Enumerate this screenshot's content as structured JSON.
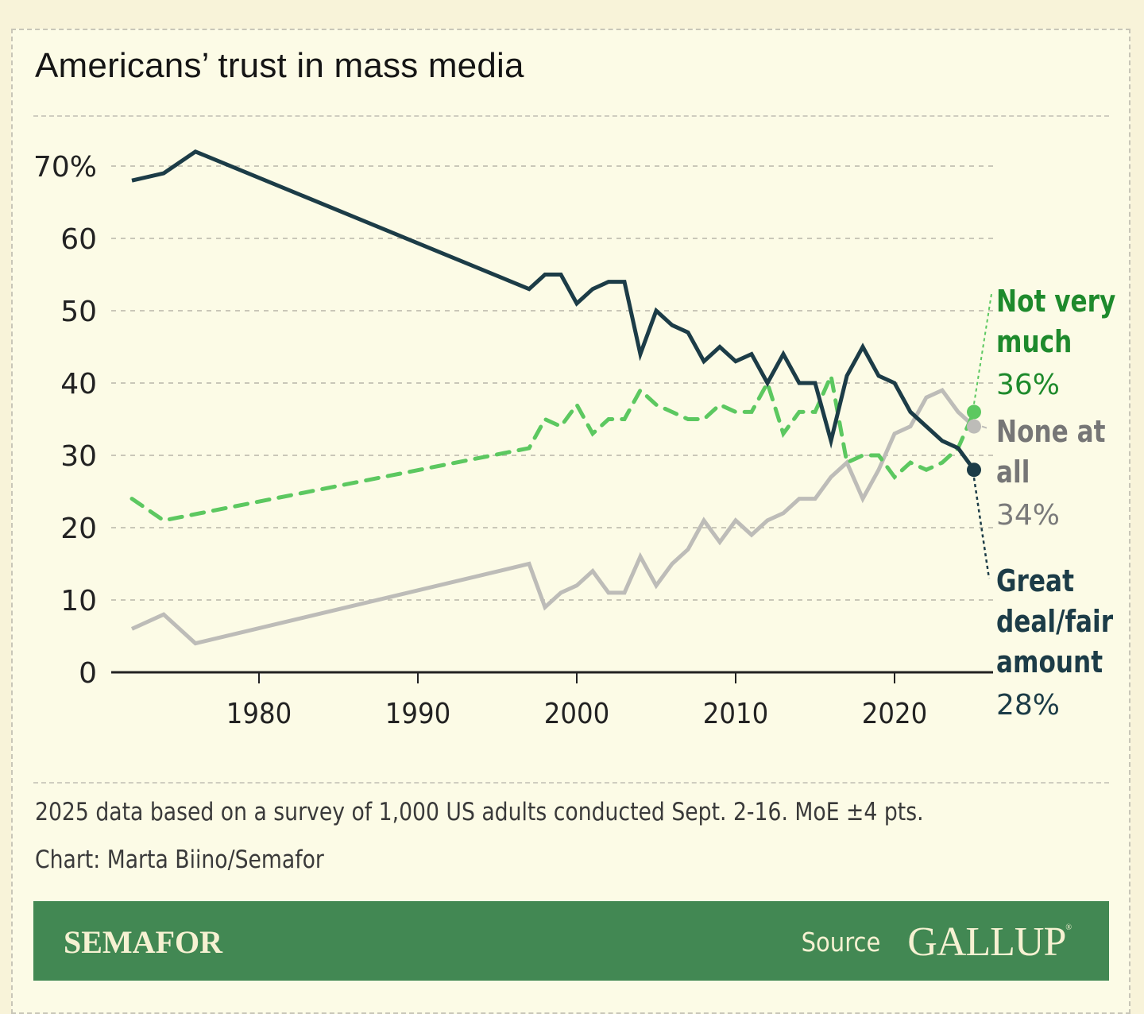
{
  "title": "Americans’ trust in mass media",
  "notes": {
    "survey": "2025 data based on a survey of 1,000 US adults conducted Sept. 2-16. MoE ±4 pts.",
    "credit": "Chart: Marta Biino/Semafor"
  },
  "footer": {
    "brand": "SEMAFOR",
    "source_label": "Source",
    "source_name": "GALLUP",
    "registered_mark": "®"
  },
  "colors": {
    "great_deal": "#1c3c47",
    "not_very_much_line": "#5cc860",
    "not_very_much_label": "#1e8a2c",
    "none_at_all_line": "#bdbcb8",
    "none_at_all_label": "#767676",
    "footer_bg": "#428853"
  },
  "chart_data": {
    "type": "line",
    "title": "Americans’ trust in mass media",
    "xlabel": "",
    "ylabel": "",
    "xlim": [
      1972,
      2025
    ],
    "ylim": [
      0,
      70
    ],
    "grid": true,
    "yticks": [
      0,
      10,
      20,
      30,
      40,
      50,
      60,
      70
    ],
    "ytick_labels": [
      "0",
      "10",
      "20",
      "30",
      "40",
      "50",
      "60",
      "70%"
    ],
    "xticks": [
      1980,
      1990,
      2000,
      2010,
      2020
    ],
    "xtick_labels": [
      "1980",
      "1990",
      "2000",
      "2010",
      "2020"
    ],
    "legend": "direct labels at right end of lines",
    "series": [
      {
        "key": "great_deal",
        "name": "Great deal/fair amount",
        "label_lines": [
          "Great",
          "deal/fair",
          "amount"
        ],
        "end_label": "28%",
        "style": "solid",
        "x": [
          1972,
          1974,
          1976,
          1997,
          1998,
          1999,
          2000,
          2001,
          2002,
          2003,
          2004,
          2005,
          2006,
          2007,
          2008,
          2009,
          2010,
          2011,
          2012,
          2013,
          2014,
          2015,
          2016,
          2017,
          2018,
          2019,
          2020,
          2021,
          2022,
          2023,
          2024,
          2025
        ],
        "values": [
          68,
          69,
          72,
          53,
          55,
          55,
          51,
          53,
          54,
          54,
          44,
          50,
          48,
          47,
          43,
          45,
          43,
          44,
          40,
          44,
          40,
          40,
          32,
          41,
          45,
          41,
          40,
          36,
          34,
          32,
          31,
          28
        ]
      },
      {
        "key": "not_very_much",
        "name": "Not very much",
        "label_lines": [
          "Not very",
          "much"
        ],
        "end_label": "36%",
        "style": "dashed",
        "x": [
          1972,
          1974,
          1997,
          1998,
          1999,
          2000,
          2001,
          2002,
          2003,
          2004,
          2005,
          2006,
          2007,
          2008,
          2009,
          2010,
          2011,
          2012,
          2013,
          2014,
          2015,
          2016,
          2017,
          2018,
          2019,
          2020,
          2021,
          2022,
          2023,
          2024,
          2025
        ],
        "values": [
          24,
          21,
          31,
          35,
          34,
          37,
          33,
          35,
          35,
          39,
          37,
          36,
          35,
          35,
          37,
          36,
          36,
          40,
          33,
          36,
          36,
          41,
          29,
          30,
          30,
          27,
          29,
          28,
          29,
          31,
          36
        ]
      },
      {
        "key": "none_at_all",
        "name": "None at all",
        "label_lines": [
          "None at",
          "all"
        ],
        "end_label": "34%",
        "style": "solid",
        "x": [
          1972,
          1974,
          1976,
          1997,
          1998,
          1999,
          2000,
          2001,
          2002,
          2003,
          2004,
          2005,
          2006,
          2007,
          2008,
          2009,
          2010,
          2011,
          2012,
          2013,
          2014,
          2015,
          2016,
          2017,
          2018,
          2019,
          2020,
          2021,
          2022,
          2023,
          2024,
          2025
        ],
        "values": [
          6,
          8,
          4,
          15,
          9,
          11,
          12,
          14,
          11,
          11,
          16,
          12,
          15,
          17,
          21,
          18,
          21,
          19,
          21,
          22,
          24,
          24,
          27,
          29,
          24,
          28,
          33,
          34,
          38,
          39,
          36,
          34
        ]
      }
    ]
  }
}
